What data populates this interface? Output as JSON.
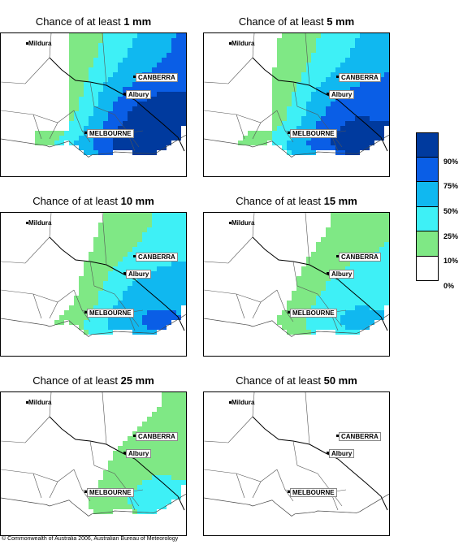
{
  "panels": [
    {
      "id": "p1",
      "title_prefix": "Chance of at least ",
      "threshold": "1 mm",
      "coverage": [
        0.0,
        0.35,
        0.6,
        0.85,
        1.0
      ]
    },
    {
      "id": "p5",
      "title_prefix": "Chance of at least ",
      "threshold": "5 mm",
      "coverage": [
        0.0,
        0.45,
        0.6,
        0.85,
        0.9
      ]
    },
    {
      "id": "p10",
      "title_prefix": "Chance of at least ",
      "threshold": "10 mm",
      "coverage": [
        0.0,
        0.5,
        0.7,
        0.9,
        1.0
      ]
    },
    {
      "id": "p15",
      "title_prefix": "Chance of at least ",
      "threshold": "15 mm",
      "coverage": [
        0.0,
        0.6,
        0.8,
        1.0,
        1.0
      ]
    },
    {
      "id": "p25",
      "title_prefix": "Chance of at least ",
      "threshold": "25 mm",
      "coverage": [
        0.0,
        0.7,
        1.0,
        1.0,
        1.0
      ]
    },
    {
      "id": "p50",
      "title_prefix": "Chance of at least ",
      "threshold": "50 mm",
      "coverage": [
        0.0,
        1.0,
        1.0,
        1.0,
        1.0
      ]
    }
  ],
  "places": {
    "mildura": "Mildura",
    "canberra": "CANBERRA",
    "albury": "Albury",
    "melbourne": "MELBOURNE"
  },
  "legend": {
    "labels": [
      "90%",
      "75%",
      "50%",
      "25%",
      "10%",
      "0%"
    ],
    "colors": [
      "#003a9e",
      "#0a5ee6",
      "#10b8f0",
      "#3ef0f6",
      "#7fe885",
      "#ffffff"
    ]
  },
  "copyright": "© Commonwealth of Australia 2006, Australian Bureau of Meteorology"
}
